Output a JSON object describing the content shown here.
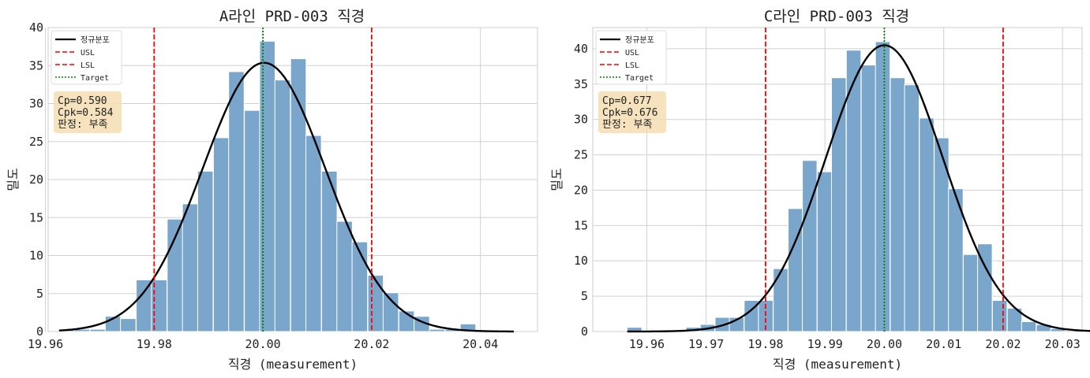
{
  "chart_data": [
    {
      "type": "bar",
      "title": "A라인  PRD-003 직경",
      "xlabel": "직경 (measurement)",
      "ylabel": "밀도",
      "xlim": [
        19.9605,
        20.0505
      ],
      "ylim": [
        0,
        40
      ],
      "xticks": [
        "19.96",
        "19.98",
        "20.00",
        "20.02",
        "20.04"
      ],
      "yticks": [
        "0",
        "5",
        "10",
        "15",
        "20",
        "25",
        "30",
        "35",
        "40"
      ],
      "grid": true,
      "legend_location": "top-left",
      "legend": [
        "정규분포",
        "USL",
        "LSL",
        "Target"
      ],
      "bin_width": 0.00284,
      "bins": [
        {
          "x0": 19.9625,
          "density": 0.3
        },
        {
          "x0": 19.9653,
          "density": 0.3
        },
        {
          "x0": 19.9682,
          "density": 0.3
        },
        {
          "x0": 19.971,
          "density": 2.0
        },
        {
          "x0": 19.9738,
          "density": 1.7
        },
        {
          "x0": 19.9767,
          "density": 6.8
        },
        {
          "x0": 19.9795,
          "density": 6.8
        },
        {
          "x0": 19.9824,
          "density": 14.8
        },
        {
          "x0": 19.9852,
          "density": 16.8
        },
        {
          "x0": 19.988,
          "density": 21.1
        },
        {
          "x0": 19.9909,
          "density": 25.5
        },
        {
          "x0": 19.9937,
          "density": 34.2
        },
        {
          "x0": 19.9966,
          "density": 29.1
        },
        {
          "x0": 19.9994,
          "density": 38.2
        },
        {
          "x0": 20.0022,
          "density": 33.1
        },
        {
          "x0": 20.0051,
          "density": 35.9
        },
        {
          "x0": 20.0079,
          "density": 25.8
        },
        {
          "x0": 20.0108,
          "density": 21.1
        },
        {
          "x0": 20.0136,
          "density": 14.5
        },
        {
          "x0": 20.0164,
          "density": 11.8
        },
        {
          "x0": 20.0193,
          "density": 7.4
        },
        {
          "x0": 20.0221,
          "density": 5.1
        },
        {
          "x0": 20.025,
          "density": 2.7
        },
        {
          "x0": 20.0278,
          "density": 2.0
        },
        {
          "x0": 20.0306,
          "density": 0.3
        },
        {
          "x0": 20.0335,
          "density": 0.3
        },
        {
          "x0": 20.0363,
          "density": 1.0
        }
      ],
      "normal_fit": {
        "mean": 20.0002,
        "sigma": 0.01128
      },
      "usl": 20.02,
      "lsl": 19.98,
      "target": 20.0,
      "stats_box": [
        "Cp=0.590",
        "Cpk=0.584",
        "판정: 부족"
      ],
      "colors": {
        "bars": "#7aa6cc",
        "bar_edge": "#ffffff",
        "curve": "#000000",
        "spec": "#ff0000",
        "target": "#008000",
        "box": "#f5deb3"
      }
    },
    {
      "type": "bar",
      "title": "C라인  PRD-003 직경",
      "xlabel": "직경 (measurement)",
      "ylabel": "밀도",
      "xlim": [
        19.9509,
        20.0333
      ],
      "ylim": [
        0,
        43
      ],
      "xticks": [
        "19.96",
        "19.97",
        "19.98",
        "19.99",
        "20.00",
        "20.01",
        "20.02",
        "20.03"
      ],
      "yticks": [
        "0",
        "5",
        "10",
        "15",
        "20",
        "25",
        "30",
        "35",
        "40"
      ],
      "grid": true,
      "legend_location": "top-left",
      "legend": [
        "정규분포",
        "USL",
        "LSL",
        "Target"
      ],
      "bin_width": 0.00246,
      "bins": [
        {
          "x0": 19.9567,
          "density": 0.6
        },
        {
          "x0": 19.9616,
          "density": 0.2
        },
        {
          "x0": 19.9666,
          "density": 0.6
        },
        {
          "x0": 19.969,
          "density": 1.0
        },
        {
          "x0": 19.9715,
          "density": 2.0
        },
        {
          "x0": 19.9739,
          "density": 2.0
        },
        {
          "x0": 19.9764,
          "density": 4.4
        },
        {
          "x0": 19.9788,
          "density": 4.4
        },
        {
          "x0": 19.9813,
          "density": 8.9
        },
        {
          "x0": 19.9838,
          "density": 17.4
        },
        {
          "x0": 19.9862,
          "density": 24.2
        },
        {
          "x0": 19.9887,
          "density": 22.6
        },
        {
          "x0": 19.9911,
          "density": 35.9
        },
        {
          "x0": 19.9936,
          "density": 39.8
        },
        {
          "x0": 19.9961,
          "density": 37.7
        },
        {
          "x0": 19.9985,
          "density": 41.0
        },
        {
          "x0": 20.001,
          "density": 35.9
        },
        {
          "x0": 20.0034,
          "density": 34.9
        },
        {
          "x0": 20.0059,
          "density": 30.2
        },
        {
          "x0": 20.0084,
          "density": 27.4
        },
        {
          "x0": 20.0108,
          "density": 20.2
        },
        {
          "x0": 20.0133,
          "density": 10.9
        },
        {
          "x0": 20.0157,
          "density": 12.4
        },
        {
          "x0": 20.0182,
          "density": 4.4
        },
        {
          "x0": 20.0207,
          "density": 3.3
        },
        {
          "x0": 20.0231,
          "density": 1.4
        },
        {
          "x0": 20.0256,
          "density": 1.0
        },
        {
          "x0": 20.028,
          "density": 0.4
        }
      ],
      "normal_fit": {
        "mean": 20.0,
        "sigma": 0.00985
      },
      "usl": 20.02,
      "lsl": 19.98,
      "target": 20.0,
      "stats_box": [
        "Cp=0.677",
        "Cpk=0.676",
        "판정: 부족"
      ],
      "colors": {
        "bars": "#7aa6cc",
        "bar_edge": "#ffffff",
        "curve": "#000000",
        "spec": "#ff0000",
        "target": "#008000",
        "box": "#f5deb3"
      }
    }
  ]
}
